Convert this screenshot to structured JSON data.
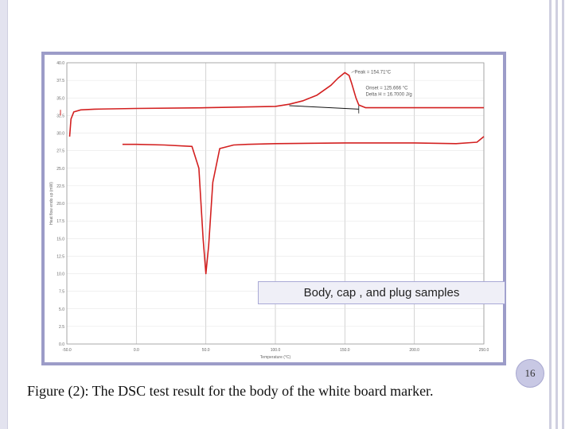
{
  "slide": {
    "figure_caption": "Figure (2): The DSC test result for the body of the white board marker.",
    "page_number": "16",
    "inset_label": "Body, cap , and plug samples",
    "colors": {
      "frame": "#9c9cc8",
      "curve": "#d32020",
      "baseline": "#111111"
    }
  },
  "chart_data": {
    "type": "line",
    "xlabel": "Temperature (°C)",
    "ylabel": "Heat flow endo up (mW)",
    "xlim": [
      -50,
      250
    ],
    "ylim": [
      0,
      40
    ],
    "grid": true,
    "x_ticks": [
      "-50.0",
      "0.0",
      "50.0",
      "100.0",
      "150.0",
      "200.0",
      "250.0"
    ],
    "y_ticks": [
      "40.0",
      "37.5",
      "35.0",
      "32.5",
      "30.0",
      "27.5",
      "25.0",
      "22.5",
      "20.0",
      "17.5",
      "15.0",
      "12.5",
      "10.0",
      "7.5",
      "5.0",
      "2.5",
      "0.0"
    ],
    "series": [
      {
        "x": [
          -48,
          -47,
          -45,
          -40,
          -30,
          0,
          50,
          100,
          110,
          120,
          130,
          140,
          145,
          150,
          153,
          155,
          158,
          160,
          165,
          170,
          200,
          250
        ],
        "y": [
          29.5,
          32,
          33,
          33.3,
          33.4,
          33.5,
          33.6,
          33.8,
          34.1,
          34.6,
          35.4,
          36.8,
          37.8,
          38.6,
          38.2,
          37,
          35,
          34,
          33.6,
          33.6,
          33.6,
          33.6
        ]
      },
      {
        "x": [
          -10,
          0,
          20,
          40,
          45,
          48,
          50,
          52,
          55,
          60,
          70,
          80,
          100,
          150,
          200,
          230,
          245,
          250
        ],
        "y": [
          28.4,
          28.4,
          28.3,
          28.1,
          25,
          15,
          10,
          14,
          23,
          27.8,
          28.3,
          28.4,
          28.5,
          28.6,
          28.6,
          28.5,
          28.7,
          29.5
        ]
      }
    ],
    "annotations": [
      {
        "text": "Peak = 154.71°C",
        "x": 154.71,
        "y": 38.6
      },
      {
        "text": "Onset = 125.666 °C",
        "x": 150,
        "y": 36.5
      },
      {
        "text": "Delta H = 16.7000 J/g",
        "x": 150,
        "y": 35.5
      }
    ]
  }
}
